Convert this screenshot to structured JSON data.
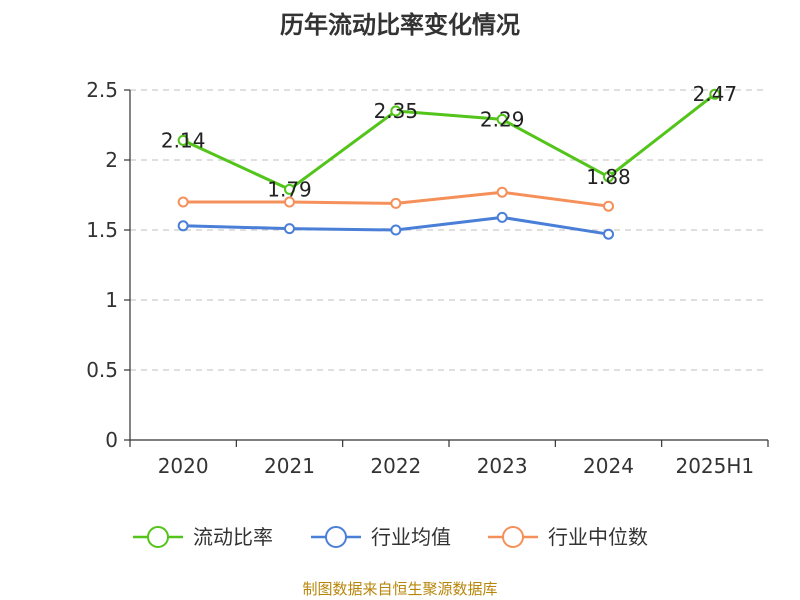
{
  "title": "历年流动比率变化情况",
  "source": "制图数据来自恒生聚源数据库",
  "colors": {
    "grid": "#cccccc",
    "axis": "#333333"
  },
  "chart_data": {
    "type": "line",
    "categories": [
      "2020",
      "2021",
      "2022",
      "2023",
      "2024",
      "2025H1"
    ],
    "ylim": [
      0,
      2.5
    ],
    "yticks": [
      0,
      0.5,
      1,
      1.5,
      2,
      2.5
    ],
    "ytick_labels": [
      "0",
      "0.5",
      "1",
      "1.5",
      "2",
      "2.5"
    ],
    "grid": true,
    "legend_position": "bottom",
    "series": [
      {
        "name": "流动比率",
        "color": "#52c41a",
        "values": [
          2.14,
          1.79,
          2.35,
          2.29,
          1.88,
          2.47
        ],
        "labels": [
          "2.14",
          "1.79",
          "2.35",
          "2.29",
          "1.88",
          "2.47"
        ]
      },
      {
        "name": "行业均值",
        "color": "#4a7fd8",
        "values": [
          1.53,
          1.51,
          1.5,
          1.59,
          1.47,
          null
        ]
      },
      {
        "name": "行业中位数",
        "color": "#f5905a",
        "values": [
          1.7,
          1.7,
          1.69,
          1.77,
          1.67,
          null
        ]
      }
    ]
  }
}
